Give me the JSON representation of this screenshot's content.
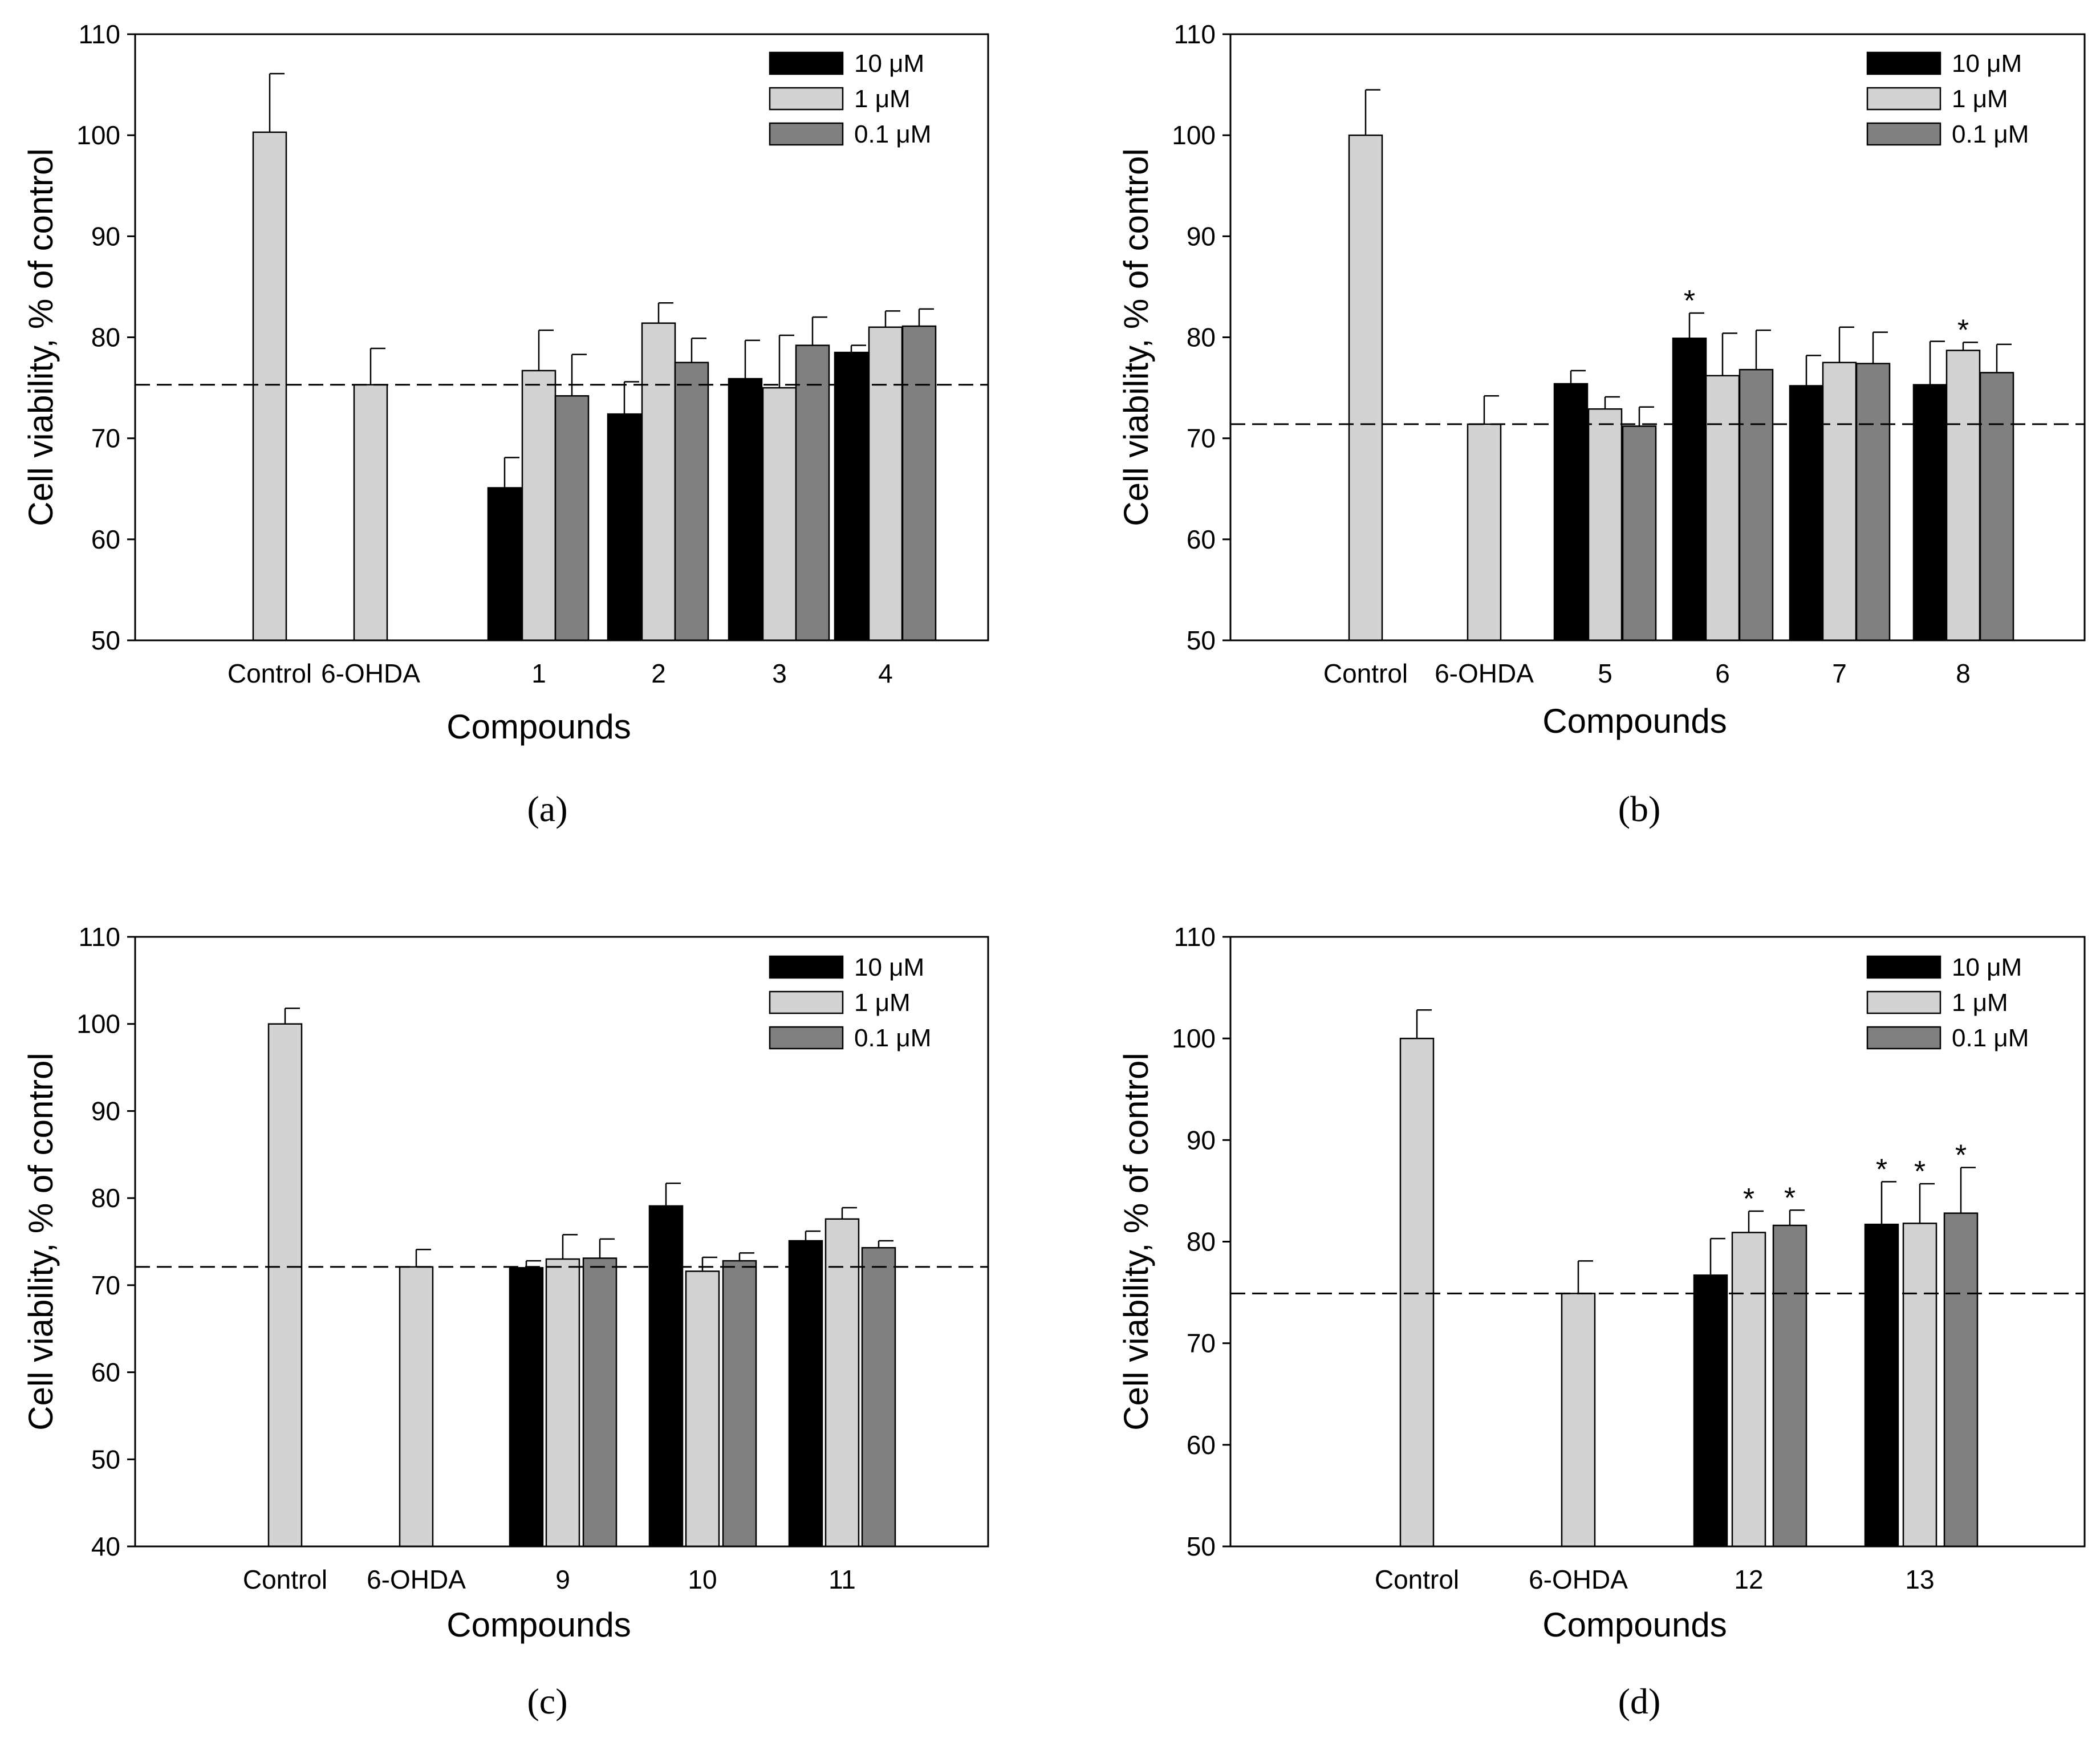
{
  "colors": {
    "c10": "#000000",
    "c1": "#d3d3d3",
    "c01": "#808080"
  },
  "chart_data": [
    {
      "type": "bar",
      "panel_label": "(a)",
      "xlabel": "Compounds",
      "ylabel": "Cell viability, % of control",
      "ylim": [
        50,
        110
      ],
      "yticks": [
        50,
        60,
        70,
        80,
        90,
        100,
        110
      ],
      "reference_line": 75.3,
      "legend": [
        "10 μM",
        "1 μM",
        "0.1 μM"
      ],
      "groups": [
        {
          "label": "Control",
          "bars": [
            {
              "series": "c1",
              "value": 100.3,
              "error": 5.8
            }
          ]
        },
        {
          "label": "6-OHDA",
          "bars": [
            {
              "series": "c1",
              "value": 75.3,
              "error": 3.6
            }
          ]
        },
        {
          "label": "1",
          "bars": [
            {
              "series": "c10",
              "value": 65.1,
              "error": 3.0
            },
            {
              "series": "c1",
              "value": 76.7,
              "error": 4.0
            },
            {
              "series": "c01",
              "value": 74.2,
              "error": 4.1
            }
          ]
        },
        {
          "label": "2",
          "bars": [
            {
              "series": "c10",
              "value": 72.4,
              "error": 3.2
            },
            {
              "series": "c1",
              "value": 81.4,
              "error": 2.0
            },
            {
              "series": "c01",
              "value": 77.5,
              "error": 2.4
            }
          ]
        },
        {
          "label": "3",
          "bars": [
            {
              "series": "c10",
              "value": 75.9,
              "error": 3.8
            },
            {
              "series": "c1",
              "value": 75.0,
              "error": 5.2
            },
            {
              "series": "c01",
              "value": 79.2,
              "error": 2.8
            }
          ]
        },
        {
          "label": "4",
          "bars": [
            {
              "series": "c10",
              "value": 78.5,
              "error": 0.7
            },
            {
              "series": "c1",
              "value": 81.0,
              "error": 1.6
            },
            {
              "series": "c01",
              "value": 81.1,
              "error": 1.7
            }
          ]
        }
      ]
    },
    {
      "type": "bar",
      "panel_label": "(b)",
      "xlabel": "Compounds",
      "ylabel": "Cell viability, % of control",
      "ylim": [
        50,
        110
      ],
      "yticks": [
        50,
        60,
        70,
        80,
        90,
        100,
        110
      ],
      "reference_line": 71.4,
      "legend": [
        "10 μM",
        "1 μM",
        "0.1 μM"
      ],
      "groups": [
        {
          "label": "Control",
          "bars": [
            {
              "series": "c1",
              "value": 100.0,
              "error": 4.5
            }
          ]
        },
        {
          "label": "6-OHDA",
          "bars": [
            {
              "series": "c1",
              "value": 71.4,
              "error": 2.8
            }
          ]
        },
        {
          "label": "5",
          "bars": [
            {
              "series": "c10",
              "value": 75.4,
              "error": 1.3
            },
            {
              "series": "c1",
              "value": 72.9,
              "error": 1.2
            },
            {
              "series": "c01",
              "value": 71.2,
              "error": 1.9
            }
          ]
        },
        {
          "label": "6",
          "bars": [
            {
              "series": "c10",
              "value": 79.9,
              "error": 2.5,
              "star": "*"
            },
            {
              "series": "c1",
              "value": 76.2,
              "error": 4.2
            },
            {
              "series": "c01",
              "value": 76.8,
              "error": 3.9
            }
          ]
        },
        {
          "label": "7",
          "bars": [
            {
              "series": "c10",
              "value": 75.2,
              "error": 3.0
            },
            {
              "series": "c1",
              "value": 77.5,
              "error": 3.5
            },
            {
              "series": "c01",
              "value": 77.4,
              "error": 3.1
            }
          ]
        },
        {
          "label": "8",
          "bars": [
            {
              "series": "c10",
              "value": 75.3,
              "error": 4.3
            },
            {
              "series": "c1",
              "value": 78.7,
              "error": 0.8,
              "star": "*"
            },
            {
              "series": "c01",
              "value": 76.5,
              "error": 2.8
            }
          ]
        }
      ]
    },
    {
      "type": "bar",
      "panel_label": "(c)",
      "xlabel": "Compounds",
      "ylabel": "Cell viability, % of control",
      "ylim": [
        40,
        110
      ],
      "yticks": [
        40,
        50,
        60,
        70,
        80,
        90,
        100,
        110
      ],
      "reference_line": 72.1,
      "legend": [
        "10 μM",
        "1 μM",
        "0.1 μM"
      ],
      "groups": [
        {
          "label": "Control",
          "bars": [
            {
              "series": "c1",
              "value": 100.0,
              "error": 1.8
            }
          ]
        },
        {
          "label": "6-OHDA",
          "bars": [
            {
              "series": "c1",
              "value": 72.1,
              "error": 2.0
            }
          ]
        },
        {
          "label": "9",
          "bars": [
            {
              "series": "c10",
              "value": 72.0,
              "error": 0.8
            },
            {
              "series": "c1",
              "value": 73.0,
              "error": 2.8
            },
            {
              "series": "c01",
              "value": 73.1,
              "error": 2.2
            }
          ]
        },
        {
          "label": "10",
          "bars": [
            {
              "series": "c10",
              "value": 79.1,
              "error": 2.6
            },
            {
              "series": "c1",
              "value": 71.6,
              "error": 1.6
            },
            {
              "series": "c01",
              "value": 72.8,
              "error": 0.9
            }
          ]
        },
        {
          "label": "11",
          "bars": [
            {
              "series": "c10",
              "value": 75.1,
              "error": 1.1
            },
            {
              "series": "c1",
              "value": 77.6,
              "error": 1.3
            },
            {
              "series": "c01",
              "value": 74.3,
              "error": 0.8
            }
          ]
        }
      ]
    },
    {
      "type": "bar",
      "panel_label": "(d)",
      "xlabel": "Compounds",
      "ylabel": "Cell viability, % of control",
      "ylim": [
        50,
        110
      ],
      "yticks": [
        50,
        60,
        70,
        80,
        90,
        100,
        110
      ],
      "reference_line": 74.9,
      "legend": [
        "10 μM",
        "1 μM",
        "0.1 μM"
      ],
      "groups": [
        {
          "label": "Control",
          "bars": [
            {
              "series": "c1",
              "value": 100.0,
              "error": 2.8
            }
          ]
        },
        {
          "label": "6-OHDA",
          "bars": [
            {
              "series": "c1",
              "value": 74.9,
              "error": 3.2
            }
          ]
        },
        {
          "label": "12",
          "bars": [
            {
              "series": "c10",
              "value": 76.7,
              "error": 3.6
            },
            {
              "series": "c1",
              "value": 80.9,
              "error": 2.1,
              "star": "*"
            },
            {
              "series": "c01",
              "value": 81.6,
              "error": 1.5,
              "star": "*"
            }
          ]
        },
        {
          "label": "13",
          "bars": [
            {
              "series": "c10",
              "value": 81.7,
              "error": 4.2,
              "star": "*"
            },
            {
              "series": "c1",
              "value": 81.8,
              "error": 3.9,
              "star": "*"
            },
            {
              "series": "c01",
              "value": 82.8,
              "error": 4.5,
              "star": "*"
            }
          ]
        }
      ]
    }
  ]
}
